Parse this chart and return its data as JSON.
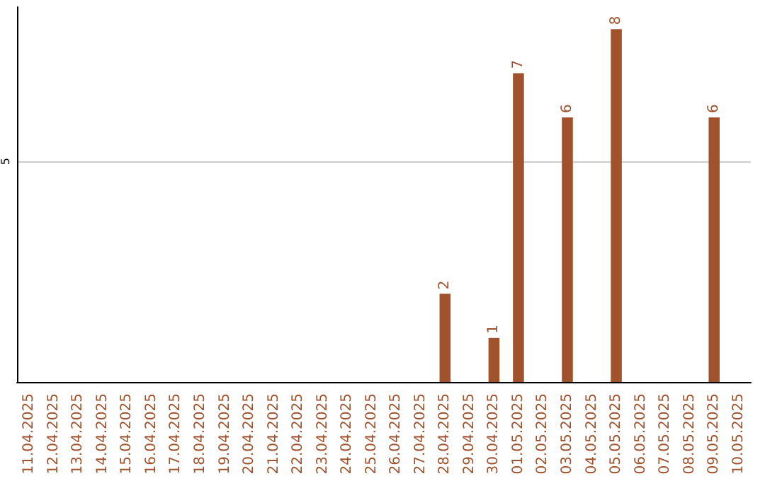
{
  "chart_data": {
    "type": "bar",
    "categories": [
      "11.04.2025",
      "12.04.2025",
      "13.04.2025",
      "14.04.2025",
      "15.04.2025",
      "16.04.2025",
      "17.04.2025",
      "18.04.2025",
      "19.04.2025",
      "20.04.2025",
      "21.04.2025",
      "22.04.2025",
      "23.04.2025",
      "24.04.2025",
      "25.04.2025",
      "26.04.2025",
      "27.04.2025",
      "28.04.2025",
      "29.04.2025",
      "30.04.2025",
      "01.05.2025",
      "02.05.2025",
      "03.05.2025",
      "04.05.2025",
      "05.05.2025",
      "06.05.2025",
      "07.05.2025",
      "08.05.2025",
      "09.05.2025",
      "10.05.2025"
    ],
    "values": [
      null,
      null,
      null,
      null,
      null,
      null,
      null,
      null,
      null,
      null,
      null,
      null,
      null,
      null,
      null,
      null,
      null,
      2,
      null,
      1,
      7,
      null,
      6,
      null,
      8,
      null,
      null,
      null,
      6,
      null
    ],
    "color": "#a0522d",
    "ylim": [
      0,
      8.5
    ],
    "yticks": [
      5
    ],
    "grid": "y",
    "data_labels": true
  }
}
